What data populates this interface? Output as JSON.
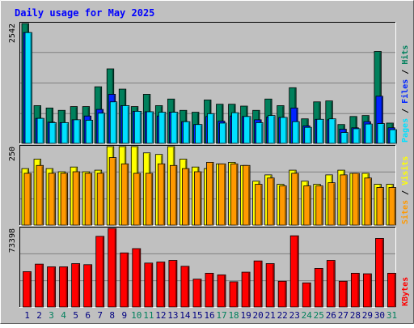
{
  "title": "Daily usage for May 2025",
  "colors": {
    "hits": "#00805c",
    "files": "#0024ff",
    "pages": "#00e0ff",
    "visits": "#ffff00",
    "sites": "#ff9900",
    "kbytes": "#ff0000",
    "weekend_label": "#00805c",
    "weekday_label": "#000080",
    "title": "#0000ff"
  },
  "chart_data": [
    {
      "type": "bar",
      "panel": "top",
      "y_max_label": "2542",
      "ylim": [
        0,
        2542
      ],
      "legend_right": [
        {
          "text": "Pages",
          "color": "#00e0ff"
        },
        {
          "text": " / ",
          "color": "#000000"
        },
        {
          "text": "Files",
          "color": "#0024ff"
        },
        {
          "text": " / ",
          "color": "#000000"
        },
        {
          "text": "Hits",
          "color": "#00805c"
        }
      ],
      "categories": [
        "1",
        "2",
        "3",
        "4",
        "5",
        "6",
        "7",
        "8",
        "9",
        "10",
        "11",
        "12",
        "13",
        "14",
        "15",
        "16",
        "17",
        "18",
        "19",
        "20",
        "21",
        "22",
        "23",
        "24",
        "25",
        "26",
        "27",
        "28",
        "29",
        "30",
        "31"
      ],
      "series": [
        {
          "key": "hits",
          "values": [
            2542,
            800,
            750,
            700,
            780,
            780,
            1200,
            1580,
            1150,
            780,
            1040,
            800,
            940,
            700,
            660,
            920,
            830,
            830,
            790,
            700,
            940,
            800,
            1180,
            520,
            880,
            900,
            400,
            570,
            590,
            1950,
            430
          ]
        },
        {
          "key": "files",
          "values": [
            2350,
            530,
            450,
            440,
            500,
            580,
            720,
            1040,
            800,
            680,
            670,
            580,
            660,
            460,
            400,
            570,
            470,
            580,
            570,
            500,
            560,
            550,
            750,
            370,
            510,
            500,
            300,
            330,
            460,
            1000,
            330
          ]
        },
        {
          "key": "pages",
          "values": [
            2350,
            530,
            440,
            440,
            500,
            490,
            640,
            880,
            800,
            680,
            670,
            660,
            660,
            460,
            400,
            630,
            430,
            650,
            570,
            440,
            590,
            550,
            460,
            340,
            510,
            520,
            230,
            310,
            410,
            420,
            290
          ]
        }
      ]
    },
    {
      "type": "bar",
      "panel": "middle",
      "y_max_label": "250",
      "ylim": [
        0,
        250
      ],
      "legend_right": [
        {
          "text": "Sites",
          "color": "#ff9900"
        },
        {
          "text": " / ",
          "color": "#000000"
        },
        {
          "text": "Visits",
          "color": "#ffff00"
        }
      ],
      "categories": [
        "1",
        "2",
        "3",
        "4",
        "5",
        "6",
        "7",
        "8",
        "9",
        "10",
        "11",
        "12",
        "13",
        "14",
        "15",
        "16",
        "17",
        "18",
        "19",
        "20",
        "21",
        "22",
        "23",
        "24",
        "25",
        "26",
        "27",
        "28",
        "29",
        "30",
        "31"
      ],
      "series": [
        {
          "key": "visits",
          "values": [
            180,
            210,
            180,
            170,
            185,
            170,
            175,
            255,
            260,
            260,
            230,
            225,
            260,
            210,
            185,
            180,
            195,
            200,
            190,
            140,
            160,
            130,
            175,
            140,
            130,
            160,
            175,
            165,
            165,
            130,
            130
          ]
        },
        {
          "key": "sites",
          "values": [
            165,
            190,
            165,
            165,
            170,
            165,
            165,
            215,
            195,
            165,
            165,
            195,
            190,
            180,
            170,
            200,
            195,
            195,
            190,
            130,
            150,
            125,
            165,
            125,
            125,
            135,
            160,
            165,
            150,
            120,
            120
          ]
        }
      ]
    },
    {
      "type": "bar",
      "panel": "bottom",
      "y_max_label": "73398",
      "ylim": [
        0,
        73398
      ],
      "legend_right": [
        {
          "text": "KBytes",
          "color": "#ff0000"
        }
      ],
      "categories": [
        "1",
        "2",
        "3",
        "4",
        "5",
        "6",
        "7",
        "8",
        "9",
        "10",
        "11",
        "12",
        "13",
        "14",
        "15",
        "16",
        "17",
        "18",
        "19",
        "20",
        "21",
        "22",
        "23",
        "24",
        "25",
        "26",
        "27",
        "28",
        "29",
        "30",
        "31"
      ],
      "series": [
        {
          "key": "kbytes",
          "values": [
            33000,
            40000,
            37500,
            37500,
            40500,
            39500,
            66000,
            73398,
            50500,
            54500,
            41000,
            42000,
            43500,
            38000,
            26000,
            31500,
            30000,
            23500,
            32500,
            43000,
            40500,
            24000,
            66500,
            22500,
            36000,
            43500,
            24000,
            31500,
            31000,
            64000,
            31500
          ]
        }
      ]
    }
  ]
}
